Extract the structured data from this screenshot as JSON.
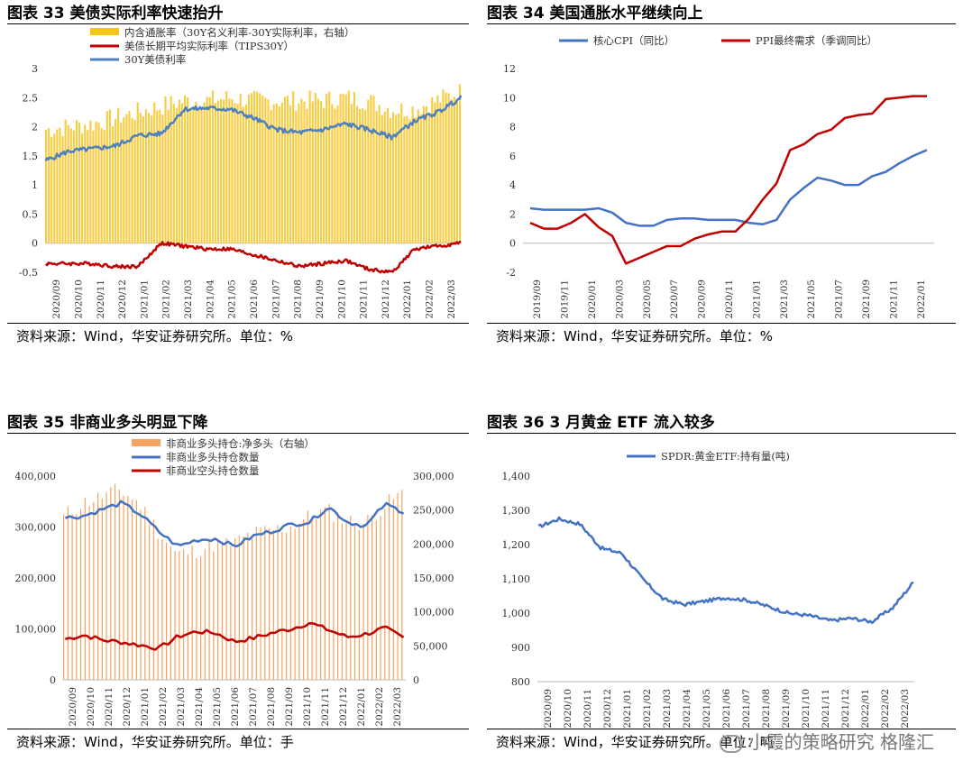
{
  "charts": [
    {
      "title": "图表 33 美债实际利率快速抬升",
      "source": "资料来源：Wind，华安证券研究所。单位：%",
      "legend": [
        "内含通胀率（30Y名义利率-30Y实际利率，右轴）",
        "美债长期平均实际利率（TIPS30Y）",
        "30Y美债利率"
      ],
      "xticks": [
        "2020/09",
        "2020/10",
        "2020/11",
        "2020/12",
        "2021/01",
        "2021/02",
        "2021/03",
        "2021/04",
        "2021/05",
        "2021/06",
        "2021/07",
        "2021/08",
        "2021/09",
        "2021/10",
        "2021/11",
        "2021/12",
        "2022/01",
        "2022/02",
        "2022/03"
      ],
      "yticks": [
        "3",
        "2.5",
        "2",
        "1.5",
        "1",
        "0.5",
        "0",
        "-0.5"
      ]
    },
    {
      "title": "图表 34 美国通胀水平继续向上",
      "source": "资料来源：Wind，华安证券研究所。单位：%",
      "legend": [
        "核心CPI（同比）",
        "PPI最终需求（季调同比）"
      ],
      "xticks": [
        "2019/09",
        "2019/11",
        "2020/01",
        "2020/03",
        "2020/05",
        "2020/07",
        "2020/09",
        "2020/11",
        "2021/01",
        "2021/03",
        "2021/05",
        "2021/07",
        "2021/09",
        "2021/11",
        "2022/01"
      ],
      "yticks": [
        "12",
        "10",
        "8",
        "6",
        "4",
        "2",
        "0",
        "-2"
      ]
    },
    {
      "title": "图表 35 非商业多头明显下降",
      "source": "资料来源：Wind，华安证券研究所。单位：手",
      "legend": [
        "非商业多头持仓:净多头（右轴）",
        "非商业多头持仓数量",
        "非商业空头持仓数量"
      ],
      "xticks": [
        "2020/09",
        "2020/10",
        "2020/11",
        "2020/12",
        "2021/01",
        "2021/02",
        "2021/03",
        "2021/04",
        "2021/05",
        "2021/06",
        "2021/07",
        "2021/08",
        "2021/09",
        "2021/10",
        "2021/11",
        "2021/12",
        "2022/01",
        "2022/02",
        "2022/03"
      ],
      "yticks_left": [
        "400,000",
        "300,000",
        "200,000",
        "100,000",
        "0"
      ],
      "yticks_right": [
        "300,000",
        "250,000",
        "200,000",
        "150,000",
        "100,000",
        "50,000",
        "0"
      ]
    },
    {
      "title": "图表 36 3 月黄金 ETF 流入较多",
      "source": "资料来源：Wind，华安证券研究所。单位：吨",
      "legend": [
        "SPDR:黄金ETF:持有量(吨)"
      ],
      "xticks": [
        "2020/09",
        "2020/10",
        "2020/11",
        "2020/12",
        "2021/01",
        "2021/02",
        "2021/03",
        "2021/04",
        "2021/05",
        "2021/06",
        "2021/07",
        "2021/08",
        "2021/09",
        "2021/10",
        "2021/11",
        "2021/12",
        "2022/01",
        "2022/02",
        "2022/03"
      ],
      "yticks": [
        "1,400",
        "1,300",
        "1,200",
        "1,100",
        "1,000",
        "900",
        "800"
      ]
    }
  ],
  "watermark": "小霞的策略研究 格隆汇",
  "chart_data": [
    {
      "type": "line",
      "title": "图表 33 美债实际利率快速抬升",
      "x": [
        "2020/09",
        "2020/10",
        "2020/11",
        "2020/12",
        "2021/01",
        "2021/02",
        "2021/03",
        "2021/04",
        "2021/05",
        "2021/06",
        "2021/07",
        "2021/08",
        "2021/09",
        "2021/10",
        "2021/11",
        "2021/12",
        "2022/01",
        "2022/02",
        "2022/03"
      ],
      "series": [
        {
          "name": "内含通胀率（30Y名义利率-30Y实际利率，右轴）",
          "chart": "bar",
          "axis": "right",
          "color": "#F5C518",
          "values": [
            1.95,
            2.0,
            2.05,
            2.15,
            2.25,
            2.35,
            2.45,
            2.45,
            2.5,
            2.45,
            2.45,
            2.45,
            2.45,
            2.5,
            2.45,
            2.3,
            2.3,
            2.45,
            2.6
          ]
        },
        {
          "name": "美债长期平均实际利率（TIPS30Y）",
          "chart": "line",
          "color": "#C00000",
          "values": [
            -0.35,
            -0.35,
            -0.35,
            -0.4,
            -0.4,
            0.0,
            -0.05,
            -0.1,
            -0.1,
            -0.2,
            -0.3,
            -0.4,
            -0.35,
            -0.3,
            -0.45,
            -0.5,
            -0.1,
            -0.05,
            0.0
          ]
        },
        {
          "name": "30Y美债利率",
          "chart": "line",
          "color": "#4F81BD",
          "values": [
            1.42,
            1.58,
            1.62,
            1.67,
            1.85,
            1.88,
            2.3,
            2.32,
            2.3,
            2.15,
            1.95,
            1.9,
            1.95,
            2.05,
            1.95,
            1.82,
            2.1,
            2.25,
            2.5
          ]
        }
      ],
      "ylim": [
        -0.5,
        3
      ]
    },
    {
      "type": "line",
      "title": "图表 34 美国通胀水平继续向上",
      "x": [
        "2019/09",
        "2019/10",
        "2019/11",
        "2019/12",
        "2020/01",
        "2020/02",
        "2020/03",
        "2020/04",
        "2020/05",
        "2020/06",
        "2020/07",
        "2020/08",
        "2020/09",
        "2020/10",
        "2020/11",
        "2020/12",
        "2021/01",
        "2021/02",
        "2021/03",
        "2021/04",
        "2021/05",
        "2021/06",
        "2021/07",
        "2021/08",
        "2021/09",
        "2021/10",
        "2021/11",
        "2021/12",
        "2022/01",
        "2022/02"
      ],
      "series": [
        {
          "name": "核心CPI（同比）",
          "color": "#4472C4",
          "values": [
            2.4,
            2.3,
            2.3,
            2.3,
            2.3,
            2.4,
            2.1,
            1.4,
            1.2,
            1.2,
            1.6,
            1.7,
            1.7,
            1.6,
            1.6,
            1.6,
            1.4,
            1.3,
            1.6,
            3.0,
            3.8,
            4.5,
            4.3,
            4.0,
            4.0,
            4.6,
            4.9,
            5.5,
            6.0,
            6.4
          ]
        },
        {
          "name": "PPI最终需求（季调同比）",
          "color": "#C00000",
          "values": [
            1.4,
            1.0,
            1.0,
            1.4,
            2.0,
            1.1,
            0.5,
            -1.4,
            -1.0,
            -0.6,
            -0.2,
            -0.2,
            0.3,
            0.6,
            0.8,
            0.8,
            1.7,
            3.0,
            4.1,
            6.4,
            6.8,
            7.5,
            7.8,
            8.6,
            8.8,
            8.9,
            9.9,
            10.0,
            10.1,
            10.1
          ]
        }
      ],
      "ylim": [
        -2,
        12
      ]
    },
    {
      "type": "line",
      "title": "图表 35 非商业多头明显下降",
      "x": [
        "2020/09",
        "2020/10",
        "2020/11",
        "2020/12",
        "2021/01",
        "2021/02",
        "2021/03",
        "2021/04",
        "2021/05",
        "2021/06",
        "2021/07",
        "2021/08",
        "2021/09",
        "2021/10",
        "2021/11",
        "2021/12",
        "2022/01",
        "2022/02",
        "2022/03"
      ],
      "series": [
        {
          "name": "非商业多头持仓:净多头（右轴）",
          "chart": "bar",
          "axis": "right",
          "color": "#F4A460",
          "values": [
            240000,
            260000,
            270000,
            280000,
            260000,
            220000,
            185000,
            190000,
            200000,
            200000,
            215000,
            220000,
            225000,
            240000,
            250000,
            235000,
            230000,
            255000,
            275000
          ]
        },
        {
          "name": "非商业多头持仓数量",
          "color": "#4472C4",
          "values": [
            318000,
            322000,
            335000,
            347000,
            325000,
            290000,
            262000,
            275000,
            277000,
            262000,
            282000,
            292000,
            305000,
            310000,
            340000,
            310000,
            302000,
            345000,
            330000
          ]
        },
        {
          "name": "非商业空头持仓数量",
          "color": "#C00000",
          "values": [
            80000,
            88000,
            78000,
            74000,
            68000,
            62000,
            85000,
            95000,
            92000,
            75000,
            82000,
            92000,
            100000,
            112000,
            98000,
            84000,
            90000,
            102000,
            82000
          ]
        }
      ],
      "ylim": [
        0,
        400000
      ],
      "y2lim": [
        0,
        300000
      ]
    },
    {
      "type": "line",
      "title": "图表 36 3 月黄金 ETF 流入较多",
      "x": [
        "2020/09",
        "2020/10",
        "2020/11",
        "2020/12",
        "2021/01",
        "2021/02",
        "2021/03",
        "2021/04",
        "2021/05",
        "2021/06",
        "2021/07",
        "2021/08",
        "2021/09",
        "2021/10",
        "2021/11",
        "2021/12",
        "2022/01",
        "2022/02",
        "2022/03"
      ],
      "series": [
        {
          "name": "SPDR:黄金ETF:持有量(吨)",
          "color": "#4472C4",
          "values": [
            1252,
            1275,
            1260,
            1190,
            1175,
            1100,
            1040,
            1025,
            1035,
            1045,
            1038,
            1020,
            1000,
            993,
            978,
            985,
            975,
            1015,
            1090
          ]
        }
      ],
      "ylim": [
        800,
        1400
      ]
    }
  ]
}
